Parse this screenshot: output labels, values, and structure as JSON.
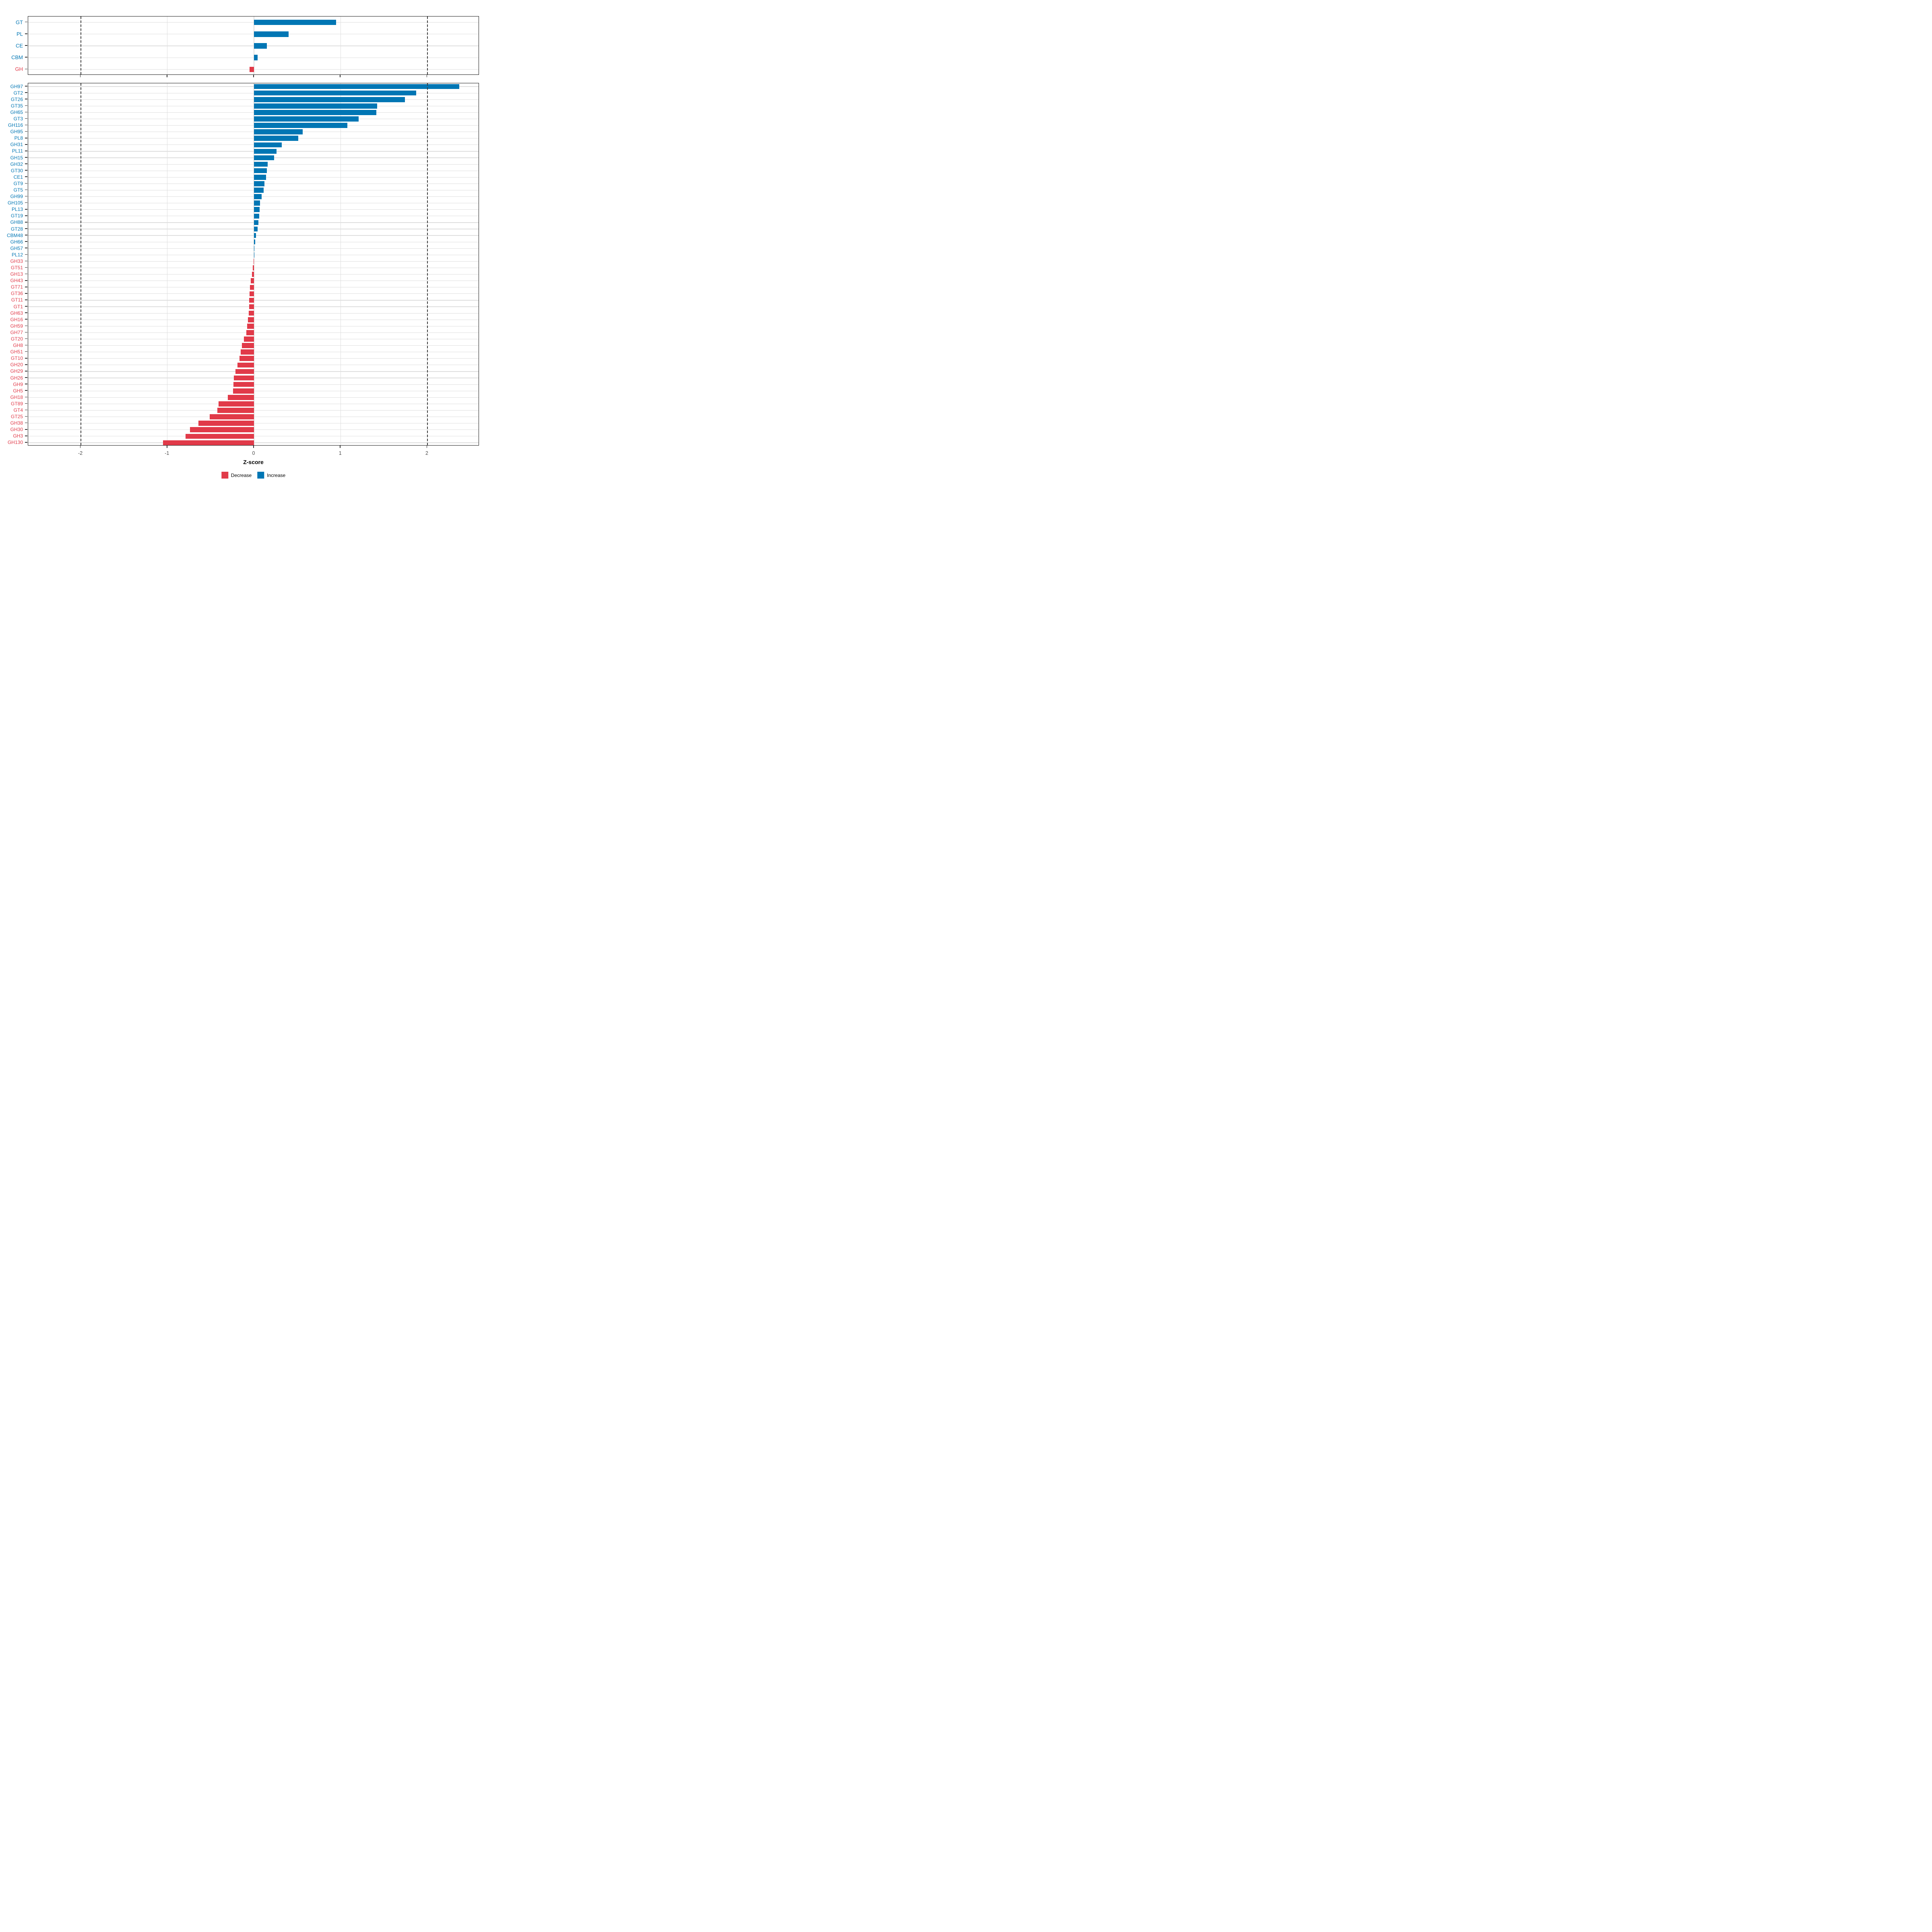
{
  "chart_data": {
    "type": "bar",
    "orientation": "horizontal",
    "title": "",
    "xlabel": "Z-score",
    "ylabel": "",
    "x_ticks": [
      -2,
      -1,
      0,
      1,
      2
    ],
    "xlim": [
      -2.61,
      2.61
    ],
    "dashed_vlines": [
      -2,
      2
    ],
    "grid": "major-only",
    "legend_position": "bottom",
    "colors": {
      "increase": "#0076b4",
      "decrease": "#e13a49",
      "grid": "#dedede",
      "dashed_line": "#3c3c3c",
      "panel_border": "#1a1a1a",
      "axis_tick": "#333333",
      "tick_label": "#4d4d4d"
    },
    "legend": [
      {
        "key": "decrease",
        "label": "Decrease",
        "color": "#e13a49"
      },
      {
        "key": "increase",
        "label": "Increase",
        "color": "#0076b4"
      }
    ],
    "panels": [
      {
        "name": "cazyme-class-panel",
        "categories": [
          "GT",
          "PL",
          "CE",
          "CBM",
          "GH"
        ],
        "values": [
          0.95,
          0.4,
          0.15,
          0.04,
          -0.05
        ]
      },
      {
        "name": "cazyme-family-panel",
        "categories": [
          "GH97",
          "GT2",
          "GT26",
          "GT35",
          "GH65",
          "GT3",
          "GH116",
          "GH95",
          "PL8",
          "GH31",
          "PL11",
          "GH15",
          "GH32",
          "GT30",
          "CE1",
          "GT9",
          "GT5",
          "GH99",
          "GH105",
          "PL13",
          "GT19",
          "GH88",
          "GT28",
          "CBM48",
          "GH66",
          "GH57",
          "PL12",
          "GH33",
          "GT51",
          "GH13",
          "GH43",
          "GT71",
          "GT36",
          "GT11",
          "GT1",
          "GH63",
          "GH16",
          "GH59",
          "GH77",
          "GT20",
          "GH8",
          "GH51",
          "GT10",
          "GH20",
          "GH29",
          "GH26",
          "GH9",
          "GH5",
          "GH18",
          "GT89",
          "GT4",
          "GT25",
          "GH38",
          "GH30",
          "GH3",
          "GH130"
        ],
        "values": [
          2.37,
          1.87,
          1.74,
          1.42,
          1.41,
          1.21,
          1.08,
          0.56,
          0.51,
          0.32,
          0.26,
          0.23,
          0.16,
          0.15,
          0.14,
          0.12,
          0.11,
          0.09,
          0.07,
          0.065,
          0.06,
          0.05,
          0.04,
          0.025,
          0.012,
          0.006,
          0.003,
          -0.006,
          -0.015,
          -0.022,
          -0.038,
          -0.048,
          -0.051,
          -0.054,
          -0.057,
          -0.062,
          -0.068,
          -0.078,
          -0.09,
          -0.115,
          -0.14,
          -0.152,
          -0.166,
          -0.19,
          -0.215,
          -0.23,
          -0.235,
          -0.24,
          -0.3,
          -0.41,
          -0.425,
          -0.51,
          -0.64,
          -0.74,
          -0.79,
          -1.05
        ]
      }
    ]
  }
}
